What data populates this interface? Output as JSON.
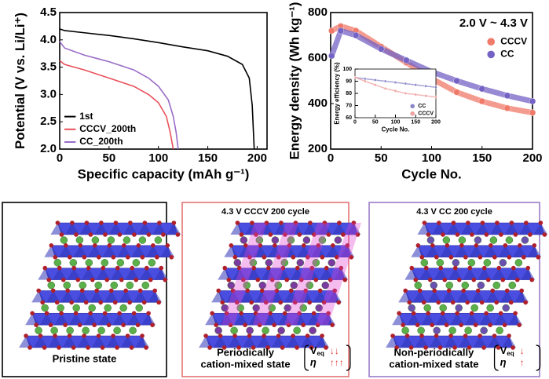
{
  "chart_data": [
    {
      "type": "line",
      "xlabel": "Specific capacity (mAh g⁻¹)",
      "ylabel": "Potential (V vs. Li/Li⁺)",
      "xlim": [
        0,
        210
      ],
      "xticks": [
        0,
        50,
        100,
        150,
        200
      ],
      "ylim": [
        2.0,
        4.5
      ],
      "yticks": [
        {
          "value": 2.0,
          "label": "2.0"
        },
        {
          "value": 2.5,
          "label": "2.5"
        },
        {
          "value": 3.0,
          "label": "3.0"
        },
        {
          "value": 3.5,
          "label": "3.5"
        },
        {
          "value": 4.0,
          "label": "4.0"
        },
        {
          "value": 4.5,
          "label": "4.5"
        }
      ],
      "legend": "lower left",
      "series": [
        {
          "name": "1st",
          "color": "#000000",
          "x": [
            0,
            5,
            25,
            50,
            75,
            100,
            125,
            150,
            170,
            185,
            192,
            195,
            197
          ],
          "values": [
            4.2,
            4.17,
            4.13,
            4.08,
            4.02,
            3.95,
            3.87,
            3.8,
            3.7,
            3.55,
            3.3,
            2.8,
            2.0
          ]
        },
        {
          "name": "CCCV_200th",
          "color": "#e8505a",
          "x": [
            0,
            5,
            25,
            50,
            75,
            90,
            100,
            108,
            112,
            115
          ],
          "values": [
            3.62,
            3.55,
            3.45,
            3.3,
            3.15,
            3.0,
            2.85,
            2.6,
            2.3,
            2.0
          ]
        },
        {
          "name": "CC_200th",
          "color": "#9a6cc8",
          "x": [
            0,
            5,
            25,
            50,
            75,
            90,
            100,
            110,
            115,
            118,
            120
          ],
          "values": [
            3.97,
            3.85,
            3.72,
            3.6,
            3.45,
            3.3,
            3.15,
            2.9,
            2.6,
            2.3,
            2.0
          ]
        }
      ]
    },
    {
      "type": "scatter",
      "xlabel": "Cycle No.",
      "ylabel": "Energy density (Wh kg⁻¹)",
      "annotation": "2.0 V ~ 4.3 V",
      "xlim": [
        0,
        200
      ],
      "xticks": [
        0,
        50,
        100,
        150,
        200
      ],
      "ylim": [
        200,
        800
      ],
      "yticks": [
        200,
        400,
        600,
        800
      ],
      "legend": "upper right",
      "x": [
        1,
        10,
        25,
        50,
        75,
        100,
        125,
        150,
        175,
        200
      ],
      "series": [
        {
          "name": "CCCV",
          "color": "#f07a6a",
          "values": [
            720,
            740,
            720,
            650,
            580,
            510,
            450,
            410,
            380,
            360
          ]
        },
        {
          "name": "CC",
          "color": "#7462c4",
          "values": [
            610,
            720,
            700,
            640,
            590,
            540,
            500,
            465,
            435,
            410
          ]
        }
      ]
    },
    {
      "type": "scatter",
      "xlabel": "Cycle No.",
      "ylabel": "Energy efficiency (%)",
      "xlim": [
        0,
        200
      ],
      "xticks": [
        0,
        50,
        100,
        150,
        200
      ],
      "ylim": [
        60,
        100
      ],
      "yticks": [
        60,
        70,
        80,
        90,
        100
      ],
      "legend": "lower right",
      "x": [
        1,
        25,
        50,
        75,
        100,
        125,
        150,
        175,
        200
      ],
      "series": [
        {
          "name": "CC",
          "color": "#8a86c8",
          "values": [
            93,
            92,
            91,
            90,
            89,
            88,
            87,
            86,
            85
          ]
        },
        {
          "name": "CCCV",
          "color": "#f0a0a0",
          "values": [
            93,
            90,
            87,
            84,
            82,
            80,
            79,
            78,
            77
          ]
        }
      ]
    }
  ],
  "panels": [
    {
      "caption": [
        "Pristine state"
      ],
      "markers": []
    },
    {
      "title": "4.3 V CCCV 200 cycle",
      "caption": [
        "Periodically",
        "cation-mixed state"
      ],
      "markers": [
        {
          "symbol": "V",
          "subscript": "eq",
          "arrows": "↓↓"
        },
        {
          "symbol": "η",
          "arrows": "↑↑↑"
        }
      ]
    },
    {
      "title": "4.3 V CC 200 cycle",
      "caption": [
        "Non-periodically",
        "cation-mixed state"
      ],
      "markers": [
        {
          "symbol": "V",
          "subscript": "eq",
          "arrows": "↓"
        },
        {
          "symbol": "η",
          "arrows": "↑"
        }
      ]
    }
  ]
}
